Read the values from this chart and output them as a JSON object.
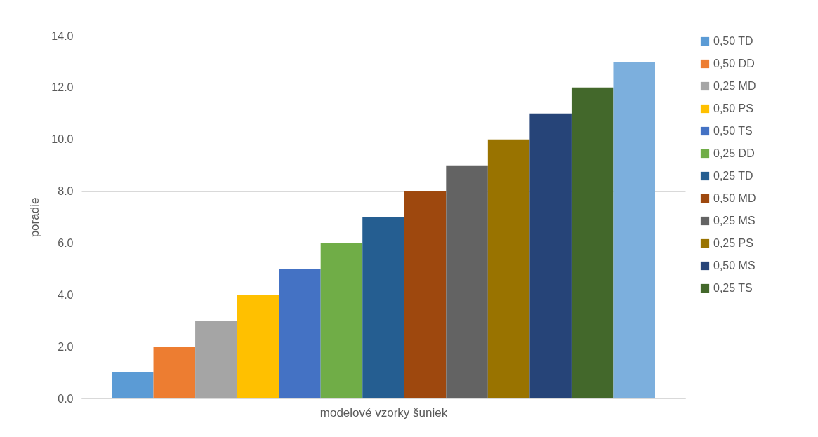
{
  "chart_data": {
    "type": "bar",
    "xlabel": "modelové vzorky šuniek",
    "ylabel": "poradie",
    "categories": [
      null
    ],
    "ylim": [
      0,
      14
    ],
    "yticks": [
      {
        "value": 0,
        "label": "0.0"
      },
      {
        "value": 2,
        "label": "2.0"
      },
      {
        "value": 4,
        "label": "4.0"
      },
      {
        "value": 6,
        "label": "6.0"
      },
      {
        "value": 8,
        "label": "8.0"
      },
      {
        "value": 10,
        "label": "10.0"
      },
      {
        "value": 12,
        "label": "12.0"
      },
      {
        "value": 14,
        "label": "14.0"
      }
    ],
    "grid": "y",
    "legend": "right",
    "series": [
      {
        "name": "0,50 TD",
        "color": "#5b9bd5",
        "values": [
          1
        ]
      },
      {
        "name": "0,50 DD",
        "color": "#ed7d31",
        "values": [
          2
        ]
      },
      {
        "name": "0,25 MD",
        "color": "#a5a5a5",
        "values": [
          3
        ]
      },
      {
        "name": "0,50 PS",
        "color": "#ffc000",
        "values": [
          4
        ]
      },
      {
        "name": "0,50 TS",
        "color": "#4472c4",
        "values": [
          5
        ]
      },
      {
        "name": "0,25 DD",
        "color": "#70ad47",
        "values": [
          6
        ]
      },
      {
        "name": "0,25 TD",
        "color": "#255e91",
        "values": [
          7
        ]
      },
      {
        "name": "0,50 MD",
        "color": "#9e480e",
        "values": [
          8
        ]
      },
      {
        "name": "0,25 MS",
        "color": "#636363",
        "values": [
          9
        ]
      },
      {
        "name": "0,25 PS",
        "color": "#997300",
        "values": [
          10
        ]
      },
      {
        "name": "0,50 MS",
        "color": "#264478",
        "values": [
          11
        ]
      },
      {
        "name": "0,25 TS",
        "color": "#43682b",
        "values": [
          12
        ]
      },
      {
        "color": "#7cafdd",
        "values": [
          13
        ]
      }
    ]
  }
}
